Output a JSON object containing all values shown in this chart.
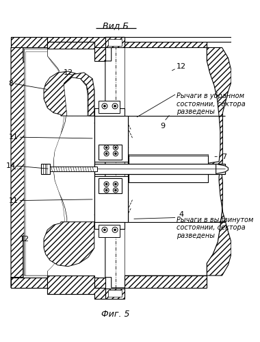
{
  "title_top": "Вид Б",
  "title_bottom": "Фиг. 5",
  "label_8": "8",
  "label_9": "9",
  "label_7": "7",
  "label_4": "4",
  "label_11a": "11",
  "label_11b": "11",
  "label_12a": "12",
  "label_12b": "12",
  "label_12c": "12",
  "label_14": "14",
  "text_upper": "Рычаги в убранном\nсостоянии, сектора\nразведены",
  "text_lower": "Рычаги в выдвинутом\nсостоянии, сектора\nразведены",
  "line_color": "#000000",
  "bg_color": "#ffffff"
}
